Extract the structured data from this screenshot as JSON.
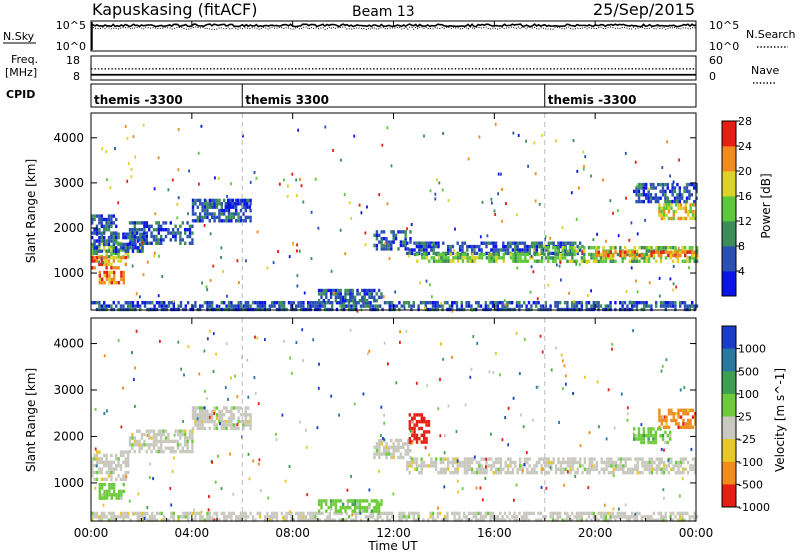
{
  "header": {
    "title": "Kapuskasing (fitACF)",
    "beam": "Beam 13",
    "date": "25/Sep/2015"
  },
  "nsky_panel": {
    "label": "N.Sky",
    "left_ticks": [
      "10^5",
      "10^0"
    ],
    "right_ticks": [
      "10^5",
      "10^0"
    ],
    "right_label": "N.Search",
    "solid_level": 0.88,
    "dotted_level": 0.78
  },
  "freq_panel": {
    "label": "Freq.",
    "unit": "[MHz]",
    "left_ticks": [
      "18",
      "8"
    ],
    "right_ticks": [
      "60",
      "0"
    ],
    "right_label": "Nave",
    "freq_value": 10.2,
    "nave_value": 28
  },
  "cpid_panel": {
    "label": "CPID",
    "segments": [
      {
        "label": "themis -3300",
        "start_h": 0,
        "end_h": 6
      },
      {
        "label": "themis 3300",
        "start_h": 6,
        "end_h": 18
      },
      {
        "label": "themis -3300",
        "start_h": 18,
        "end_h": 24
      }
    ]
  },
  "x_axis": {
    "label": "Time UT",
    "range_h": [
      0,
      24
    ],
    "tick_labels": [
      "00:00",
      "04:00",
      "08:00",
      "12:00",
      "16:00",
      "20:00",
      "00:00"
    ],
    "tick_hours": [
      0,
      4,
      8,
      12,
      16,
      20,
      24
    ],
    "dashed_hours": [
      6,
      18
    ]
  },
  "y_axis": {
    "label": "Slant Range [km]",
    "range_km": [
      180,
      4550
    ],
    "tick_labels": [
      "1000",
      "2000",
      "3000",
      "4000"
    ],
    "tick_values": [
      1000,
      2000,
      3000,
      4000
    ]
  },
  "chart_data": [
    {
      "type": "heatmap",
      "name": "power",
      "ylabel": "Slant Range [km]",
      "colorbar_label": "Power [dB]",
      "colorbar_ticks": [
        "4",
        "8",
        "12",
        "16",
        "20",
        "24",
        "28"
      ],
      "colorbar_colors": [
        "#0a14e6",
        "#2a50b4",
        "#3c8c5a",
        "#5ec83c",
        "#dcd228",
        "#f08c1e",
        "#e61e14"
      ],
      "regions": [
        {
          "h0": 0.0,
          "h1": 1.5,
          "r0": 1380,
          "r1": 1700,
          "level": 3
        },
        {
          "h0": 0.0,
          "h1": 1.4,
          "r0": 1100,
          "r1": 1380,
          "level": 5
        },
        {
          "h0": 0.3,
          "h1": 1.3,
          "r0": 800,
          "r1": 1050,
          "level": 5
        },
        {
          "h0": 0.0,
          "h1": 2.0,
          "r0": 1500,
          "r1": 1900,
          "level": 1
        },
        {
          "h0": 0.0,
          "h1": 1.0,
          "r0": 1900,
          "r1": 2300,
          "level": 1
        },
        {
          "h0": 1.5,
          "h1": 4.0,
          "r0": 1650,
          "r1": 2150,
          "level": 1
        },
        {
          "h0": 4.0,
          "h1": 6.3,
          "r0": 2150,
          "r1": 2650,
          "level": 1
        },
        {
          "h0": 5.3,
          "h1": 6.3,
          "r0": 2450,
          "r1": 2650,
          "level": 0
        },
        {
          "h0": 11.2,
          "h1": 12.7,
          "r0": 1550,
          "r1": 1950,
          "level": 1
        },
        {
          "h0": 12.5,
          "h1": 19.5,
          "r0": 1450,
          "r1": 1700,
          "level": 1
        },
        {
          "h0": 12.8,
          "h1": 18.0,
          "r0": 1250,
          "r1": 1450,
          "level": 3
        },
        {
          "h0": 18.0,
          "h1": 24.0,
          "r0": 1250,
          "r1": 1600,
          "level": 3
        },
        {
          "h0": 20.0,
          "h1": 24.0,
          "r0": 1350,
          "r1": 1500,
          "level": 5
        },
        {
          "h0": 22.5,
          "h1": 24.0,
          "r0": 2200,
          "r1": 2550,
          "level": 4
        },
        {
          "h0": 21.5,
          "h1": 24.0,
          "r0": 2550,
          "r1": 3000,
          "level": 1
        },
        {
          "h0": 0.0,
          "h1": 24.0,
          "r0": 180,
          "r1": 380,
          "level": 1
        },
        {
          "h0": 9.0,
          "h1": 11.5,
          "r0": 380,
          "r1": 650,
          "level": 1
        }
      ]
    },
    {
      "type": "heatmap",
      "name": "velocity",
      "ylabel": "Slant Range [km]",
      "colorbar_label": "Velocity [m s^-1]",
      "colorbar_ticks": [
        "1000",
        "500",
        "100",
        "25",
        "-25",
        "-100",
        "-500",
        "-1000"
      ],
      "colorbar_colors": [
        "#1a3cc8",
        "#2878a0",
        "#3ca050",
        "#6ecc3c",
        "#c8c8be",
        "#e6c828",
        "#f08c1e",
        "#e61e14"
      ],
      "regions": [
        {
          "h0": 0.0,
          "h1": 1.5,
          "r0": 1100,
          "r1": 1700,
          "level": 4
        },
        {
          "h0": 0.3,
          "h1": 1.3,
          "r0": 700,
          "r1": 1000,
          "level": 3
        },
        {
          "h0": 1.5,
          "h1": 4.0,
          "r0": 1650,
          "r1": 2150,
          "level": 4
        },
        {
          "h0": 4.0,
          "h1": 6.3,
          "r0": 2150,
          "r1": 2650,
          "level": 4
        },
        {
          "h0": 11.2,
          "h1": 12.7,
          "r0": 1550,
          "r1": 1950,
          "level": 4
        },
        {
          "h0": 12.5,
          "h1": 24.0,
          "r0": 1200,
          "r1": 1550,
          "level": 4
        },
        {
          "h0": 22.5,
          "h1": 24.0,
          "r0": 2200,
          "r1": 2600,
          "level": 6
        },
        {
          "h0": 21.5,
          "h1": 23.0,
          "r0": 1900,
          "r1": 2200,
          "level": 3
        },
        {
          "h0": 12.6,
          "h1": 13.4,
          "r0": 1900,
          "r1": 2500,
          "level": 7
        },
        {
          "h0": 0.0,
          "h1": 24.0,
          "r0": 180,
          "r1": 380,
          "level": 4
        },
        {
          "h0": 9.0,
          "h1": 11.5,
          "r0": 380,
          "r1": 650,
          "level": 3
        }
      ]
    }
  ]
}
